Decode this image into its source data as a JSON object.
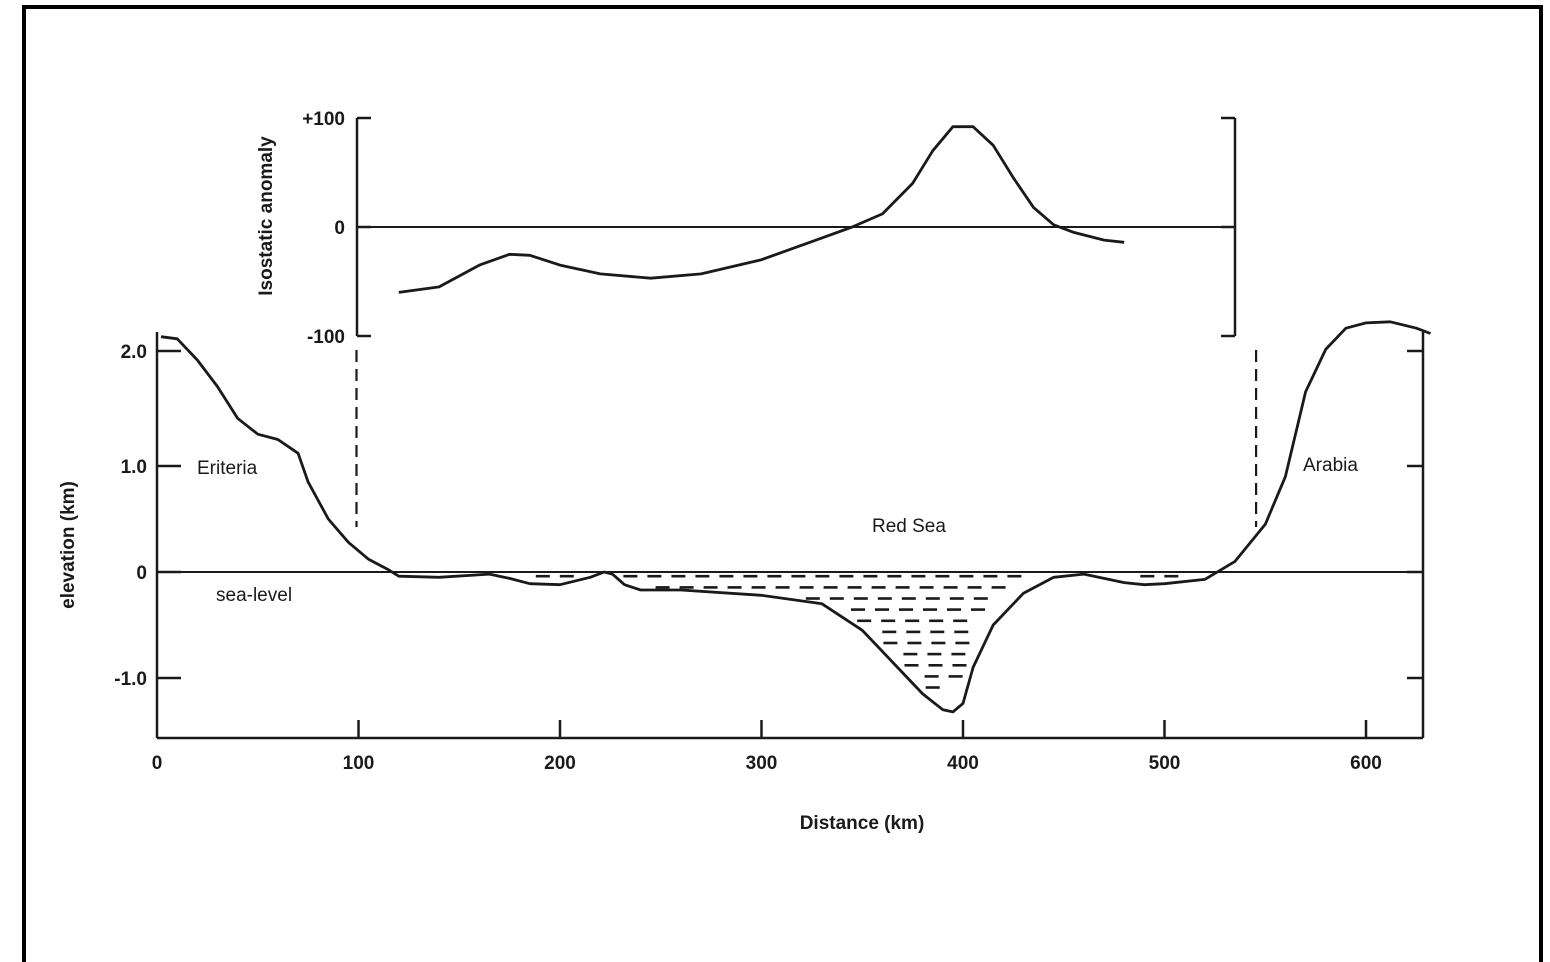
{
  "chart_data": [
    {
      "type": "line",
      "title": "",
      "xlabel": "",
      "ylabel": "Isostatic anomaly",
      "xlim": [
        0,
        640
      ],
      "ylim": [
        -100,
        100
      ],
      "yticks": [
        {
          "value": 100,
          "label": "+100"
        },
        {
          "value": 0,
          "label": "0"
        },
        {
          "value": -100,
          "label": "-100"
        }
      ],
      "series": [
        {
          "x": [
            120,
            140,
            160,
            175,
            185,
            200,
            220,
            245,
            270,
            300,
            330,
            345,
            360,
            375,
            385,
            395,
            405,
            415,
            425,
            435,
            445,
            455,
            470,
            480
          ],
          "y": [
            -60,
            -55,
            -35,
            -25,
            -26,
            -35,
            -43,
            -47,
            -43,
            -30,
            -10,
            0,
            12,
            40,
            70,
            92,
            92,
            75,
            45,
            18,
            2,
            -5,
            -12,
            -14
          ]
        }
      ],
      "guide_lines_x": [
        100,
        540
      ]
    },
    {
      "type": "line",
      "title": "",
      "xlabel": "Distance (km)",
      "ylabel": "elevation (km)",
      "xlim": [
        0,
        630
      ],
      "ylim": [
        -1.5,
        2.3
      ],
      "xticks": [
        0,
        100,
        200,
        300,
        400,
        500,
        600
      ],
      "yticks": [
        {
          "value": 2.0,
          "label": "2.0"
        },
        {
          "value": 1.0,
          "label": "1.0"
        },
        {
          "value": 0,
          "label": "0"
        },
        {
          "value": -1.0,
          "label": "-1.0"
        }
      ],
      "series": [
        {
          "x": [
            2,
            10,
            20,
            30,
            40,
            50,
            60,
            70,
            75,
            85,
            95,
            105,
            115,
            120,
            140,
            165,
            175,
            185,
            200,
            215,
            222,
            226,
            232,
            240,
            260,
            300,
            330,
            350,
            365,
            380,
            390,
            395,
            400,
            405,
            415,
            430,
            445,
            460,
            480,
            490,
            500,
            520,
            535,
            550,
            560,
            565,
            570,
            580,
            590,
            600,
            612,
            625,
            632
          ],
          "y": [
            2.22,
            2.2,
            2.0,
            1.75,
            1.45,
            1.3,
            1.25,
            1.12,
            0.85,
            0.5,
            0.28,
            0.12,
            0.02,
            -0.04,
            -0.05,
            -0.02,
            -0.06,
            -0.11,
            -0.12,
            -0.05,
            0.0,
            -0.02,
            -0.12,
            -0.17,
            -0.17,
            -0.22,
            -0.3,
            -0.55,
            -0.85,
            -1.15,
            -1.3,
            -1.32,
            -1.24,
            -0.9,
            -0.5,
            -0.2,
            -0.05,
            -0.02,
            -0.1,
            -0.12,
            -0.11,
            -0.07,
            0.1,
            0.45,
            0.9,
            1.3,
            1.7,
            2.1,
            2.3,
            2.35,
            2.36,
            2.3,
            2.25
          ]
        }
      ],
      "water_basins": [
        {
          "x_start": 185,
          "x_end": 212,
          "surface": -0.04
        },
        {
          "x_start": 226,
          "x_end": 440,
          "surface": -0.04
        },
        {
          "x_start": 485,
          "x_end": 520,
          "surface": -0.04
        }
      ],
      "annotations": {
        "eritrea": "Eriteria",
        "arabia": "Arabia",
        "red_sea": "Red Sea",
        "sea_level": "sea-level"
      }
    }
  ]
}
